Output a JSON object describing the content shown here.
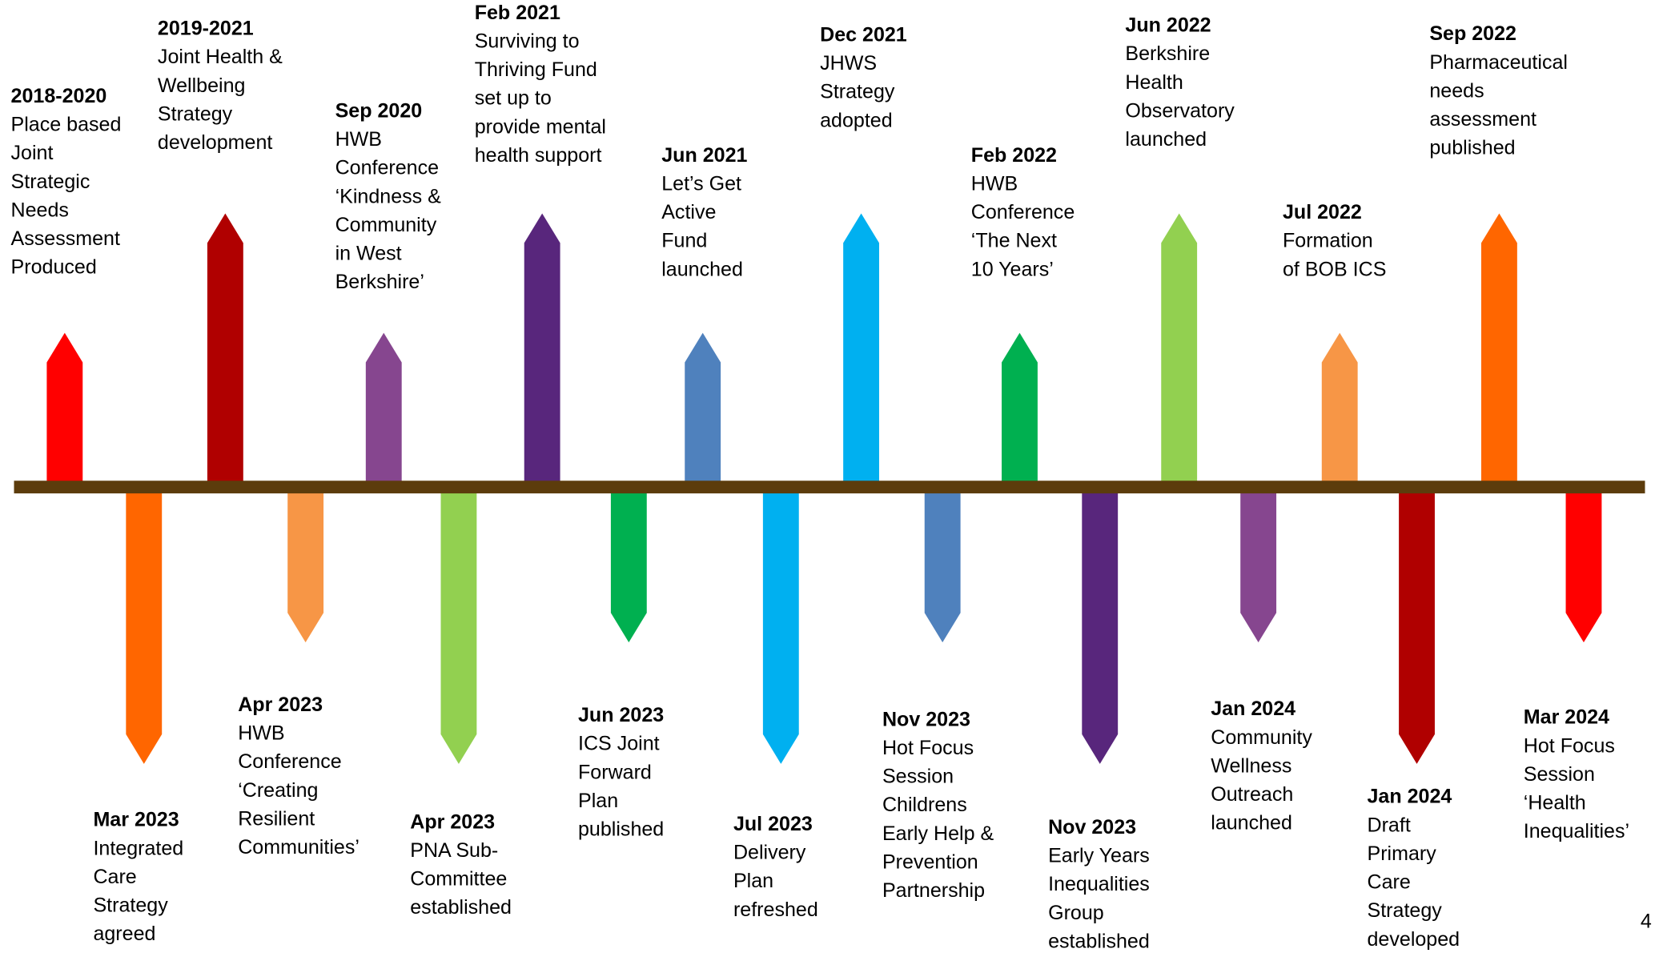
{
  "timeline": {
    "top": [
      {
        "date": "2018-2020",
        "lines": [
          "Place based",
          "Joint",
          "Strategic",
          "Needs",
          "Assessment",
          "Produced"
        ]
      },
      {
        "date": "2019-2021",
        "lines": [
          "Joint Health &",
          "Wellbeing",
          "Strategy",
          "development"
        ]
      },
      {
        "date": "Sep 2020",
        "lines": [
          "HWB",
          "Conference",
          "‘Kindness &",
          "Community",
          "in West",
          "Berkshire’"
        ]
      },
      {
        "date": "Feb 2021",
        "lines": [
          "Surviving to",
          "Thriving Fund",
          "set up to",
          "provide mental",
          "health support"
        ]
      },
      {
        "date": "Jun 2021",
        "lines": [
          "Let’s Get",
          "Active",
          "Fund",
          "launched"
        ]
      },
      {
        "date": "Dec 2021",
        "lines": [
          "JHWS",
          "Strategy",
          "adopted"
        ]
      },
      {
        "date": "Feb 2022",
        "lines": [
          "HWB",
          "Conference",
          "‘The Next",
          "10 Years’"
        ]
      },
      {
        "date": "Jun 2022",
        "lines": [
          "Berkshire",
          "Health",
          "Observatory",
          "launched"
        ]
      },
      {
        "date": "Jul 2022",
        "lines": [
          "Formation",
          "of BOB ICS"
        ]
      },
      {
        "date": "Sep 2022",
        "lines": [
          "Pharmaceutical",
          "needs",
          "assessment",
          "published"
        ]
      }
    ],
    "bottom": [
      {
        "date": "Mar 2023",
        "lines": [
          "Integrated",
          "Care",
          "Strategy",
          "agreed"
        ]
      },
      {
        "date": "Apr 2023",
        "lines": [
          "HWB",
          "Conference",
          "‘Creating",
          "Resilient",
          "Communities’"
        ]
      },
      {
        "date": "Apr 2023",
        "lines": [
          "PNA Sub-",
          "Committee",
          "established"
        ]
      },
      {
        "date": "Jun 2023",
        "lines": [
          "ICS Joint",
          "Forward",
          "Plan",
          "published"
        ]
      },
      {
        "date": "Jul 2023",
        "lines": [
          "Delivery",
          "Plan",
          "refreshed"
        ]
      },
      {
        "date": "Nov 2023",
        "lines": [
          "Hot Focus",
          "Session",
          "Childrens",
          "Early Help &",
          "Prevention",
          "Partnership"
        ]
      },
      {
        "date": "Nov 2023",
        "lines": [
          "Early Years",
          "Inequalities",
          "Group",
          "established"
        ]
      },
      {
        "date": "Jan 2024",
        "lines": [
          "Community",
          "Wellness",
          "Outreach",
          "launched"
        ]
      },
      {
        "date": "Jan 2024",
        "lines": [
          "Draft",
          "Primary",
          "Care",
          "Strategy",
          "developed"
        ]
      },
      {
        "date": "Mar 2024",
        "lines": [
          "Hot Focus",
          "Session",
          "‘Health",
          "Inequalities’"
        ]
      }
    ]
  },
  "page_number": "4"
}
